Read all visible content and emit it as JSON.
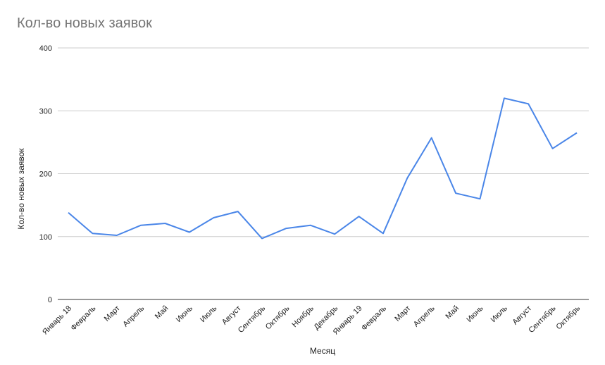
{
  "chart_data": {
    "type": "line",
    "title": "Кол-во новых заявок",
    "xlabel": "Месяц",
    "ylabel": "Кол-во новых заявок",
    "ylim": [
      0,
      400
    ],
    "yticks": [
      0,
      100,
      200,
      300,
      400
    ],
    "grid": true,
    "legend": "none",
    "categories": [
      "Январь 18",
      "Февраль",
      "Март",
      "Апрель",
      "Май",
      "Июнь",
      "Июль",
      "Август",
      "Сентябрь",
      "Октябрь",
      "Ноябрь",
      "Декабрь",
      "Январь 19",
      "Февраль",
      "Март",
      "Апрель",
      "Май",
      "Июнь",
      "Июль",
      "Август",
      "Сентябрь",
      "Октябрь"
    ],
    "series": [
      {
        "color": "#4a86e8",
        "values": [
          138,
          105,
          102,
          118,
          121,
          107,
          130,
          140,
          97,
          113,
          118,
          104,
          132,
          105,
          193,
          257,
          169,
          160,
          320,
          311,
          240,
          265
        ]
      }
    ]
  }
}
